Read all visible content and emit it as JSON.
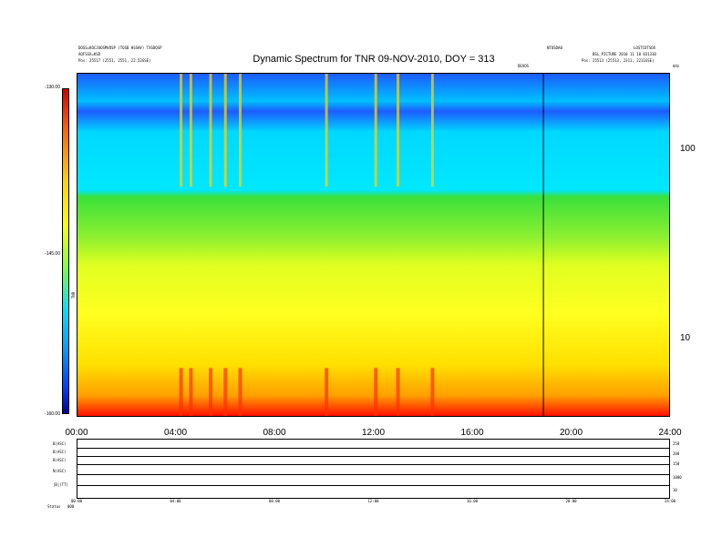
{
  "header": {
    "left_line1": "DOSS=KOCJOOSMVOSP (TOSB HSSHV) TXSDQSP",
    "left_line2": "AQFSSX=KSD",
    "left_line3": "Pos: 25517 (2551, 2551, 22.52GSE)",
    "right_top_a": "NTOSDA0",
    "right_top_b": "LOSTCOTSOX",
    "right_line2": "BSL_PICTURE 2010 11 18 031310",
    "right_line3": "Pos: 25513 (25513, 2311, 2211GSE)",
    "marker_label": "DEVOS",
    "corner_label": "kHz"
  },
  "title": "Dynamic Spectrum for TNR 09-NOV-2010, DOY = 313",
  "colorbar": {
    "label": "TNR",
    "ticks": [
      "-130.00",
      "-145.00",
      "-160.00"
    ],
    "stops": [
      "#d40000",
      "#ff6000",
      "#ffd000",
      "#ffff00",
      "#80ff40",
      "#00e0ff",
      "#00a0ff",
      "#0040ff",
      "#0000a0"
    ]
  },
  "chart_data": {
    "type": "heatmap",
    "title": "Dynamic Spectrum for TNR 09-NOV-2010, DOY = 313",
    "x_ticks": [
      "00:00",
      "04:00",
      "08:00",
      "12:00",
      "16:00",
      "20:00",
      "24:00"
    ],
    "x_range_hours": [
      0,
      24
    ],
    "y_ticks": [
      "100",
      "10"
    ],
    "y_scale": "log",
    "y_range_khz": [
      4,
      250
    ],
    "colorbar_range": [
      -160,
      -130
    ],
    "marker_time_hours": 18.9,
    "band_levels_from_top": [
      {
        "freq_khz": 200,
        "color": "#1c5cff"
      },
      {
        "freq_khz": 120,
        "color": "#00e8ff"
      },
      {
        "freq_khz": 55,
        "color": "#3be03b"
      },
      {
        "freq_khz": 30,
        "color": "#b8f020"
      },
      {
        "freq_khz": 15,
        "color": "#ffff20"
      },
      {
        "freq_khz": 7,
        "color": "#ffd000"
      },
      {
        "freq_khz": 5,
        "color": "#ff2000"
      }
    ],
    "bursts_hours": [
      4.2,
      4.6,
      5.4,
      6.0,
      6.6,
      10.1,
      12.1,
      13.0,
      14.4
    ]
  },
  "aux_panel": {
    "labels": [
      "B(ASC)",
      "B(ASC)",
      "B(ASC)",
      "N(ASC)",
      "|B|(TT)"
    ],
    "right_values": [
      "250",
      "200",
      "150",
      "1000",
      "10"
    ],
    "status": "Status",
    "status_value": "000",
    "x_ticks": [
      "00:00",
      "04:00",
      "08:00",
      "12:00",
      "16:00",
      "20:00",
      "24:00"
    ]
  }
}
